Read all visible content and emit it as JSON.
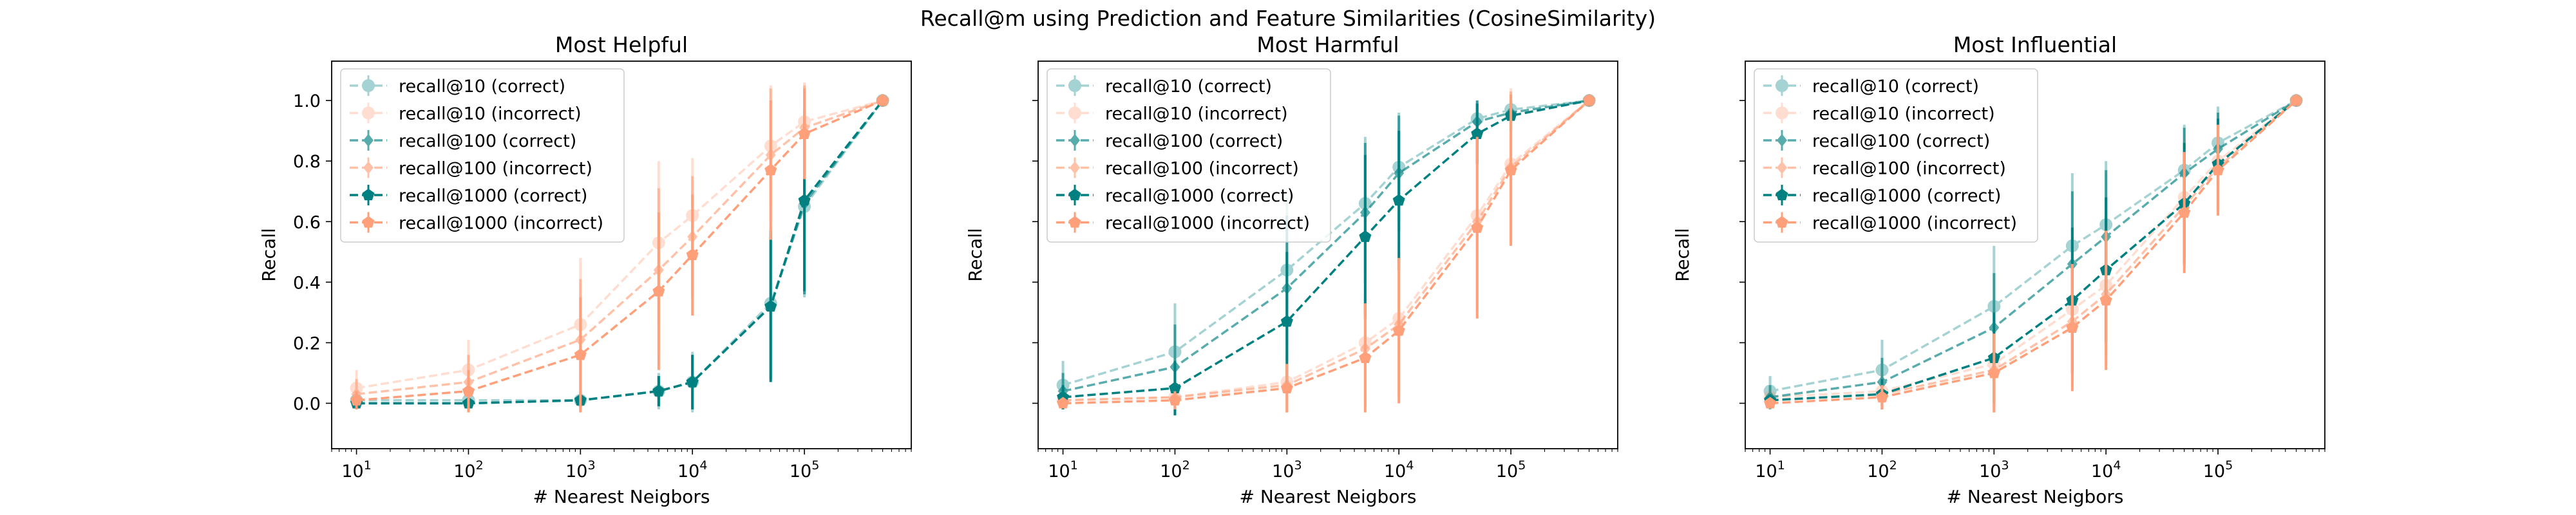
{
  "suptitle": "Recall@m using Prediction and Feature Similarities (CosineSimilarity)",
  "series_styles": [
    {
      "name": "recall@10 (correct)",
      "color": "#008080",
      "alpha": 0.35,
      "marker": "circle"
    },
    {
      "name": "recall@10 (incorrect)",
      "color": "#FFA07A",
      "alpha": 0.35,
      "marker": "circle"
    },
    {
      "name": "recall@100 (correct)",
      "color": "#008080",
      "alpha": 0.65,
      "marker": "diamond"
    },
    {
      "name": "recall@100 (incorrect)",
      "color": "#FFA07A",
      "alpha": 0.65,
      "marker": "diamond"
    },
    {
      "name": "recall@1000 (correct)",
      "color": "#008080",
      "alpha": 1.0,
      "marker": "pentagon"
    },
    {
      "name": "recall@1000 (incorrect)",
      "color": "#FFA07A",
      "alpha": 1.0,
      "marker": "pentagon"
    }
  ],
  "chart_data": [
    {
      "type": "line",
      "title": "Most Helpful",
      "xlabel": "# Nearest Neigbors",
      "ylabel": "Recall",
      "xscale": "log",
      "x": [
        10,
        100,
        1000,
        5000,
        10000,
        50000,
        100000,
        500000
      ],
      "xlim": [
        6,
        900000
      ],
      "ylim": [
        -0.15,
        1.13
      ],
      "xticks": [
        {
          "value": 10,
          "base": "10",
          "exp": "1"
        },
        {
          "value": 100,
          "base": "10",
          "exp": "2"
        },
        {
          "value": 1000,
          "base": "10",
          "exp": "3"
        },
        {
          "value": 10000,
          "base": "10",
          "exp": "4"
        },
        {
          "value": 100000,
          "base": "10",
          "exp": "5"
        }
      ],
      "yticks": [
        {
          "value": 0.0,
          "label": "0.0"
        },
        {
          "value": 0.2,
          "label": "0.2"
        },
        {
          "value": 0.4,
          "label": "0.4"
        },
        {
          "value": 0.6,
          "label": "0.6"
        },
        {
          "value": 0.8,
          "label": "0.8"
        },
        {
          "value": 1.0,
          "label": "1.0"
        }
      ],
      "show_ytick_labels": true,
      "legend": "upper-left",
      "series": [
        {
          "name": "recall@10 (correct)",
          "values": [
            0.01,
            0.01,
            0.01,
            0.04,
            0.07,
            0.33,
            0.65,
            1.0
          ],
          "err": [
            0.02,
            0.03,
            0.03,
            0.06,
            0.1,
            0.25,
            0.3,
            0.0
          ]
        },
        {
          "name": "recall@10 (incorrect)",
          "values": [
            0.05,
            0.11,
            0.26,
            0.53,
            0.62,
            0.85,
            0.93,
            1.0
          ],
          "err": [
            0.06,
            0.1,
            0.22,
            0.27,
            0.19,
            0.2,
            0.13,
            0.0
          ]
        },
        {
          "name": "recall@100 (correct)",
          "values": [
            0.0,
            0.0,
            0.01,
            0.04,
            0.07,
            0.32,
            0.66,
            1.0
          ],
          "err": [
            0.02,
            0.02,
            0.02,
            0.05,
            0.09,
            0.24,
            0.3,
            0.0
          ]
        },
        {
          "name": "recall@100 (incorrect)",
          "values": [
            0.03,
            0.07,
            0.21,
            0.44,
            0.55,
            0.82,
            0.91,
            1.0
          ],
          "err": [
            0.05,
            0.09,
            0.2,
            0.27,
            0.2,
            0.22,
            0.14,
            0.0
          ]
        },
        {
          "name": "recall@1000 (correct)",
          "values": [
            0.0,
            0.0,
            0.01,
            0.04,
            0.07,
            0.32,
            0.67,
            1.0
          ],
          "err": [
            0.01,
            0.02,
            0.02,
            0.05,
            0.09,
            0.25,
            0.3,
            0.0
          ]
        },
        {
          "name": "recall@1000 (incorrect)",
          "values": [
            0.01,
            0.04,
            0.16,
            0.37,
            0.49,
            0.77,
            0.89,
            1.0
          ],
          "err": [
            0.03,
            0.07,
            0.19,
            0.26,
            0.2,
            0.23,
            0.15,
            0.0
          ]
        }
      ]
    },
    {
      "type": "line",
      "title": "Most Harmful",
      "xlabel": "# Nearest Neigbors",
      "ylabel": "Recall",
      "xscale": "log",
      "x": [
        10,
        100,
        1000,
        5000,
        10000,
        50000,
        100000,
        500000
      ],
      "xlim": [
        6,
        900000
      ],
      "ylim": [
        -0.15,
        1.13
      ],
      "xticks": [
        {
          "value": 10,
          "base": "10",
          "exp": "1"
        },
        {
          "value": 100,
          "base": "10",
          "exp": "2"
        },
        {
          "value": 1000,
          "base": "10",
          "exp": "3"
        },
        {
          "value": 10000,
          "base": "10",
          "exp": "4"
        },
        {
          "value": 100000,
          "base": "10",
          "exp": "5"
        }
      ],
      "yticks": [
        {
          "value": 0.0,
          "label": "0.0"
        },
        {
          "value": 0.2,
          "label": "0.2"
        },
        {
          "value": 0.4,
          "label": "0.4"
        },
        {
          "value": 0.6,
          "label": "0.6"
        },
        {
          "value": 0.8,
          "label": "0.8"
        },
        {
          "value": 1.0,
          "label": "1.0"
        }
      ],
      "show_ytick_labels": false,
      "legend": "upper-left",
      "series": [
        {
          "name": "recall@10 (correct)",
          "values": [
            0.06,
            0.17,
            0.44,
            0.66,
            0.78,
            0.94,
            0.97,
            1.0
          ],
          "err": [
            0.08,
            0.16,
            0.24,
            0.22,
            0.18,
            0.06,
            0.04,
            0.0
          ]
        },
        {
          "name": "recall@10 (incorrect)",
          "values": [
            0.01,
            0.02,
            0.07,
            0.2,
            0.28,
            0.62,
            0.79,
            1.0
          ],
          "err": [
            0.02,
            0.04,
            0.1,
            0.2,
            0.24,
            0.3,
            0.25,
            0.0
          ]
        },
        {
          "name": "recall@100 (correct)",
          "values": [
            0.04,
            0.12,
            0.38,
            0.63,
            0.76,
            0.93,
            0.96,
            1.0
          ],
          "err": [
            0.06,
            0.14,
            0.24,
            0.23,
            0.19,
            0.07,
            0.04,
            0.0
          ]
        },
        {
          "name": "recall@100 (incorrect)",
          "values": [
            0.01,
            0.02,
            0.06,
            0.18,
            0.26,
            0.6,
            0.78,
            1.0
          ],
          "err": [
            0.02,
            0.04,
            0.09,
            0.19,
            0.24,
            0.3,
            0.25,
            0.0
          ]
        },
        {
          "name": "recall@1000 (correct)",
          "values": [
            0.02,
            0.05,
            0.27,
            0.55,
            0.67,
            0.89,
            0.95,
            1.0
          ],
          "err": [
            0.04,
            0.09,
            0.23,
            0.27,
            0.23,
            0.1,
            0.05,
            0.0
          ]
        },
        {
          "name": "recall@1000 (incorrect)",
          "values": [
            0.0,
            0.01,
            0.05,
            0.15,
            0.24,
            0.58,
            0.77,
            1.0
          ],
          "err": [
            0.01,
            0.03,
            0.08,
            0.18,
            0.24,
            0.3,
            0.25,
            0.0
          ]
        }
      ]
    },
    {
      "type": "line",
      "title": "Most Influential",
      "xlabel": "# Nearest Neigbors",
      "ylabel": "Recall",
      "xscale": "log",
      "x": [
        10,
        100,
        1000,
        5000,
        10000,
        50000,
        100000,
        500000
      ],
      "xlim": [
        6,
        900000
      ],
      "ylim": [
        -0.15,
        1.13
      ],
      "xticks": [
        {
          "value": 10,
          "base": "10",
          "exp": "1"
        },
        {
          "value": 100,
          "base": "10",
          "exp": "2"
        },
        {
          "value": 1000,
          "base": "10",
          "exp": "3"
        },
        {
          "value": 10000,
          "base": "10",
          "exp": "4"
        },
        {
          "value": 100000,
          "base": "10",
          "exp": "5"
        }
      ],
      "yticks": [
        {
          "value": 0.0,
          "label": "0.0"
        },
        {
          "value": 0.2,
          "label": "0.2"
        },
        {
          "value": 0.4,
          "label": "0.4"
        },
        {
          "value": 0.6,
          "label": "0.6"
        },
        {
          "value": 0.8,
          "label": "0.8"
        },
        {
          "value": 1.0,
          "label": "1.0"
        }
      ],
      "show_ytick_labels": false,
      "legend": "upper-left",
      "series": [
        {
          "name": "recall@10 (correct)",
          "values": [
            0.04,
            0.11,
            0.32,
            0.52,
            0.59,
            0.77,
            0.86,
            1.0
          ],
          "err": [
            0.05,
            0.1,
            0.2,
            0.24,
            0.21,
            0.15,
            0.12,
            0.0
          ]
        },
        {
          "name": "recall@10 (incorrect)",
          "values": [
            0.02,
            0.04,
            0.13,
            0.31,
            0.39,
            0.68,
            0.8,
            1.0
          ],
          "err": [
            0.03,
            0.06,
            0.15,
            0.22,
            0.23,
            0.2,
            0.15,
            0.0
          ]
        },
        {
          "name": "recall@100 (correct)",
          "values": [
            0.02,
            0.07,
            0.25,
            0.46,
            0.55,
            0.76,
            0.84,
            1.0
          ],
          "err": [
            0.04,
            0.08,
            0.18,
            0.24,
            0.22,
            0.15,
            0.12,
            0.0
          ]
        },
        {
          "name": "recall@100 (incorrect)",
          "values": [
            0.01,
            0.03,
            0.11,
            0.27,
            0.36,
            0.65,
            0.78,
            1.0
          ],
          "err": [
            0.02,
            0.05,
            0.14,
            0.21,
            0.23,
            0.2,
            0.15,
            0.0
          ]
        },
        {
          "name": "recall@1000 (correct)",
          "values": [
            0.01,
            0.03,
            0.15,
            0.34,
            0.44,
            0.66,
            0.79,
            1.0
          ],
          "err": [
            0.02,
            0.05,
            0.15,
            0.24,
            0.24,
            0.2,
            0.15,
            0.0
          ]
        },
        {
          "name": "recall@1000 (incorrect)",
          "values": [
            0.0,
            0.02,
            0.1,
            0.25,
            0.34,
            0.63,
            0.77,
            1.0
          ],
          "err": [
            0.01,
            0.04,
            0.13,
            0.21,
            0.23,
            0.2,
            0.15,
            0.0
          ]
        }
      ]
    }
  ]
}
